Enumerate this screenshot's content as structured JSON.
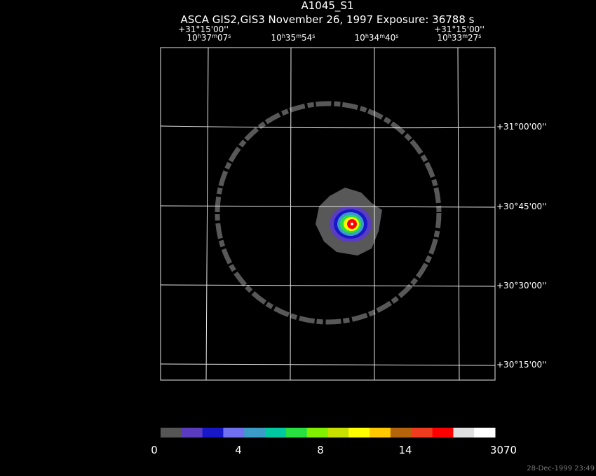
{
  "title": "A1045_S1",
  "subtitle": "ASCA GIS2,GIS3 November 26, 1997 Exposure: 36788 s",
  "top_dec_labels": [
    "+31°15'00''",
    "+31°15'00''"
  ],
  "ra_labels": [
    [
      "10",
      "h",
      "37",
      "m",
      "07",
      "s"
    ],
    [
      "10",
      "h",
      "35",
      "m",
      "54",
      "s"
    ],
    [
      "10",
      "h",
      "34",
      "m",
      "40",
      "s"
    ],
    [
      "10",
      "h",
      "33",
      "m",
      "27",
      "s"
    ]
  ],
  "dec_labels": [
    "+31°00'00''",
    "+30°45'00''",
    "+30°30'00''",
    "+30°15'00''"
  ],
  "colorbar": {
    "colors": [
      "#555555",
      "#5a3cc0",
      "#1818c8",
      "#7070f0",
      "#3c9cc8",
      "#00c8a0",
      "#28e040",
      "#80f000",
      "#c8e000",
      "#ffff00",
      "#ffc800",
      "#b4640a",
      "#f03c1e",
      "#ff0000",
      "#e0e0e0",
      "#ffffff"
    ],
    "labels": [
      "0",
      "4",
      "8",
      "14",
      "3070"
    ]
  },
  "timestamp": "28-Dec-1999 23:49"
}
